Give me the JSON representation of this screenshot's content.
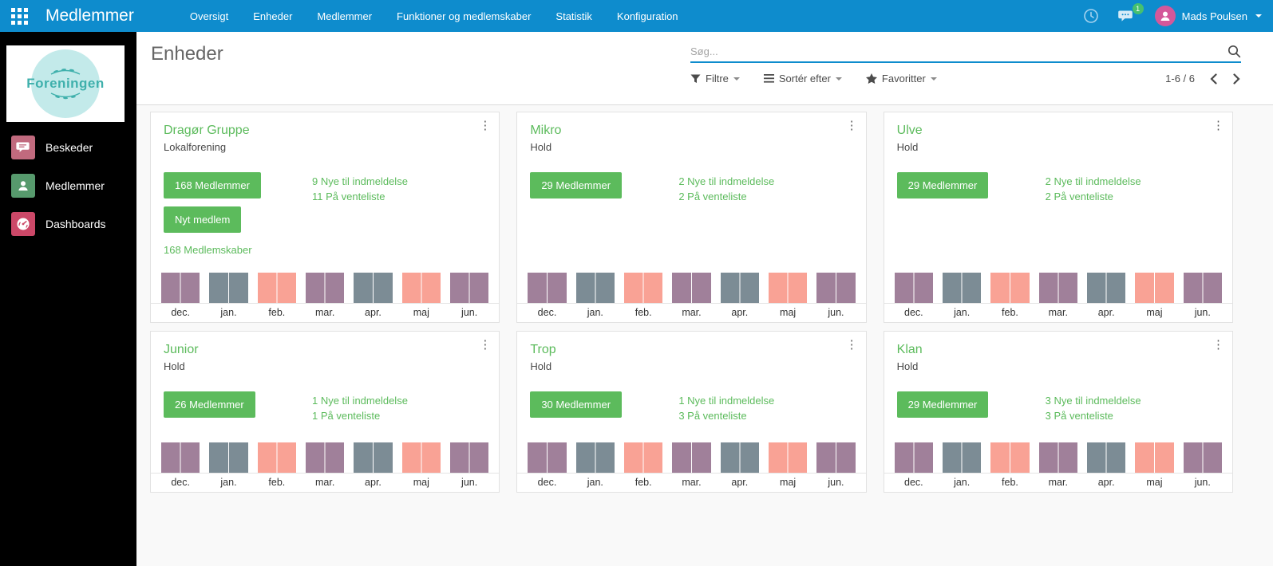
{
  "topbar": {
    "brand": "Medlemmer",
    "menu": [
      "Oversigt",
      "Enheder",
      "Medlemmer",
      "Funktioner og medlemskaber",
      "Statistik",
      "Konfiguration"
    ],
    "messages_badge": "1",
    "user_name": "Mads Poulsen"
  },
  "sidebar": {
    "logo_text": "Foreningen",
    "items": [
      {
        "label": "Beskeder",
        "icon": "chat-bubble-icon",
        "color": "#c16a7e"
      },
      {
        "label": "Medlemmer",
        "icon": "member-icon",
        "color": "#579a6d"
      },
      {
        "label": "Dashboards",
        "icon": "gauge-icon",
        "color": "#cc4868"
      }
    ]
  },
  "control_panel": {
    "title": "Enheder",
    "search_placeholder": "Søg...",
    "filters": [
      {
        "label": "Filtre",
        "icon": "filter-icon"
      },
      {
        "label": "Sortér efter",
        "icon": "sort-icon"
      },
      {
        "label": "Favoritter",
        "icon": "star-icon"
      }
    ],
    "pager": "1-6 / 6"
  },
  "cards": [
    {
      "title": "Dragør Gruppe",
      "subtitle": "Lokalforening",
      "members_button": "168 Medlemmer",
      "new_member_button": "Nyt medlem",
      "memberships_link": "168 Medlemskaber",
      "stats": [
        "9 Nye til indmeldelse",
        "11 På venteliste"
      ]
    },
    {
      "title": "Mikro",
      "subtitle": "Hold",
      "members_button": "29 Medlemmer",
      "stats": [
        "2 Nye til indmeldelse",
        "2 På venteliste"
      ]
    },
    {
      "title": "Ulve",
      "subtitle": "Hold",
      "members_button": "29 Medlemmer",
      "stats": [
        "2 Nye til indmeldelse",
        "2 På venteliste"
      ]
    },
    {
      "title": "Junior",
      "subtitle": "Hold",
      "members_button": "26 Medlemmer",
      "stats": [
        "1 Nye til indmeldelse",
        "1 På venteliste"
      ]
    },
    {
      "title": "Trop",
      "subtitle": "Hold",
      "members_button": "30 Medlemmer",
      "stats": [
        "1 Nye til indmeldelse",
        "3 På venteliste"
      ]
    },
    {
      "title": "Klan",
      "subtitle": "Hold",
      "members_button": "29 Medlemmer",
      "stats": [
        "3 Nye til indmeldelse",
        "3 På venteliste"
      ]
    }
  ],
  "chart_data": {
    "type": "bar",
    "applies_to": "identical mini bar chart shown at the bottom of all 6 unit cards",
    "categories": [
      "dec.",
      "jan.",
      "feb.",
      "mar.",
      "apr.",
      "maj",
      "jun."
    ],
    "series": [
      {
        "name": "left-half-bar",
        "values": [
          1,
          1,
          1,
          1,
          1,
          1,
          1
        ]
      },
      {
        "name": "right-half-bar",
        "values": [
          1,
          1,
          1,
          1,
          1,
          1,
          1
        ]
      }
    ],
    "ylim": [
      0,
      1
    ],
    "title": "",
    "xlabel": "",
    "ylabel": "",
    "grid": false,
    "legend": false,
    "bar_colors_by_month": [
      "#a0809a",
      "#7c8c95",
      "#f9a295",
      "#a0809a",
      "#7c8c95",
      "#f9a295",
      "#a0809a"
    ]
  },
  "colors": {
    "topbar_blue": "#0e8ccd",
    "accent_green": "#5cbb5c",
    "badge_green": "#45c06f",
    "avatar_pink": "#d4589a",
    "logo_teal": "#3fb0ac",
    "bar_mauve": "#a0809a",
    "bar_slate": "#7c8c95",
    "bar_salmon": "#f9a295",
    "kanban_bg": "#f9f9f9"
  }
}
